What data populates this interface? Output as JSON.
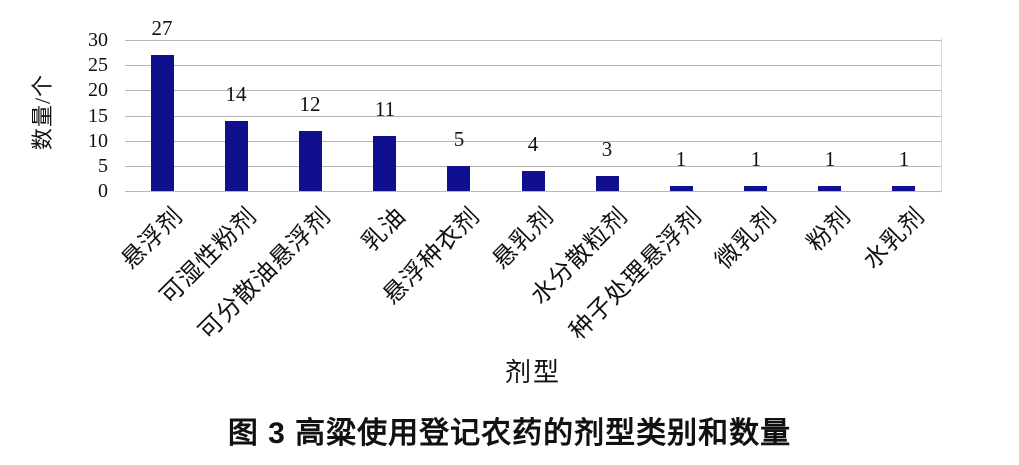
{
  "figure": {
    "caption": "图 3 高粱使用登记农药的剂型类别和数量"
  },
  "chart_data": {
    "type": "bar",
    "title": "图 3 高粱使用登记农药的剂型类别和数量",
    "categories": [
      "悬浮剂",
      "可湿性粉剂",
      "可分散油悬浮剂",
      "乳油",
      "悬浮种衣剂",
      "悬乳剂",
      "水分散粒剂",
      "种子处理悬浮剂",
      "微乳剂",
      "粉剂",
      "水乳剂"
    ],
    "values": [
      27,
      14,
      12,
      11,
      5,
      4,
      3,
      1,
      1,
      1,
      1
    ],
    "xlabel": "剂型",
    "ylabel": "数量/个",
    "ylim": [
      0,
      30
    ],
    "yticks": [
      0,
      5,
      10,
      15,
      20,
      25,
      30
    ],
    "grid": "horizontal-only",
    "legend": "none",
    "data_labels": true,
    "colors": {
      "bar": "#10108E",
      "gridline": "#b6b6b6",
      "plot_border": "#d8d8d8",
      "text": "#111111",
      "background": "#ffffff"
    }
  }
}
